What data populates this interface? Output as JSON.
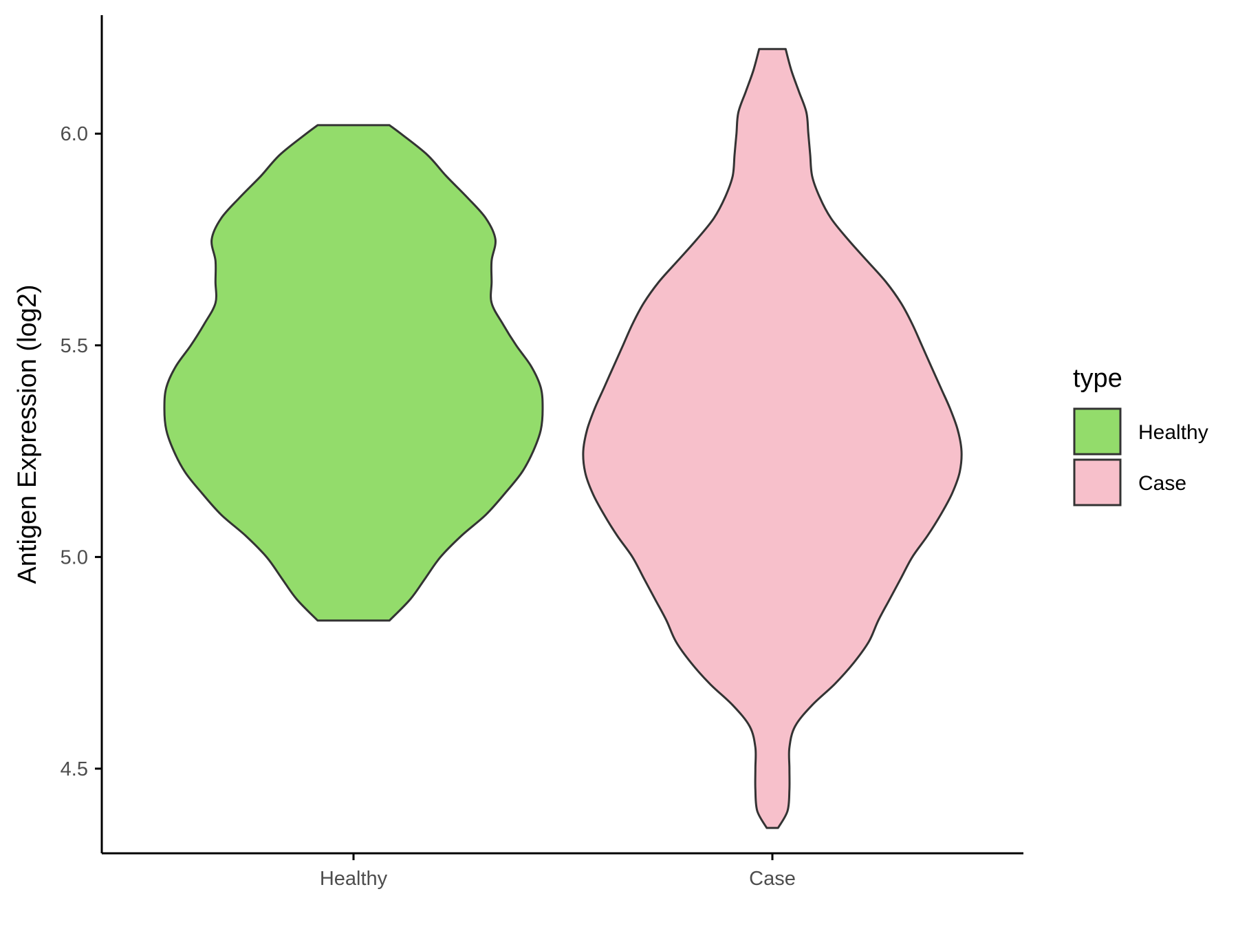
{
  "chart_data": {
    "type": "violin",
    "ylabel": "Antigen Expression (log2)",
    "xlabel": "",
    "ylim": [
      4.3,
      6.28
    ],
    "yticks": [
      4.5,
      5.0,
      5.5,
      6.0
    ],
    "ytick_labels": [
      "4.5",
      "5.0",
      "5.5",
      "6.0"
    ],
    "categories": [
      "Healthy",
      "Case"
    ],
    "legend": {
      "title": "type",
      "position": "right",
      "entries": [
        "Healthy",
        "Case"
      ]
    },
    "series": [
      {
        "name": "Healthy",
        "color": "#93dc6b",
        "min": 4.85,
        "max": 6.02,
        "density_profile": [
          [
            4.85,
            0.19
          ],
          [
            4.9,
            0.3
          ],
          [
            4.95,
            0.38
          ],
          [
            5.0,
            0.46
          ],
          [
            5.05,
            0.57
          ],
          [
            5.1,
            0.7
          ],
          [
            5.15,
            0.8
          ],
          [
            5.2,
            0.89
          ],
          [
            5.25,
            0.95
          ],
          [
            5.3,
            0.99
          ],
          [
            5.35,
            1.0
          ],
          [
            5.4,
            0.99
          ],
          [
            5.45,
            0.94
          ],
          [
            5.5,
            0.86
          ],
          [
            5.55,
            0.79
          ],
          [
            5.6,
            0.73
          ],
          [
            5.65,
            0.73
          ],
          [
            5.7,
            0.73
          ],
          [
            5.75,
            0.75
          ],
          [
            5.8,
            0.7
          ],
          [
            5.85,
            0.6
          ],
          [
            5.9,
            0.49
          ],
          [
            5.95,
            0.39
          ],
          [
            6.0,
            0.25
          ],
          [
            6.02,
            0.19
          ]
        ]
      },
      {
        "name": "Case",
        "color": "#f7c0cb",
        "min": 4.36,
        "max": 6.2,
        "density_profile": [
          [
            4.36,
            0.03
          ],
          [
            4.4,
            0.08
          ],
          [
            4.45,
            0.09
          ],
          [
            4.5,
            0.09
          ],
          [
            4.55,
            0.09
          ],
          [
            4.6,
            0.12
          ],
          [
            4.65,
            0.21
          ],
          [
            4.7,
            0.33
          ],
          [
            4.75,
            0.43
          ],
          [
            4.8,
            0.51
          ],
          [
            4.85,
            0.56
          ],
          [
            4.9,
            0.62
          ],
          [
            4.95,
            0.68
          ],
          [
            5.0,
            0.74
          ],
          [
            5.05,
            0.82
          ],
          [
            5.1,
            0.89
          ],
          [
            5.15,
            0.95
          ],
          [
            5.2,
            0.99
          ],
          [
            5.25,
            1.0
          ],
          [
            5.3,
            0.98
          ],
          [
            5.35,
            0.94
          ],
          [
            5.4,
            0.89
          ],
          [
            5.45,
            0.84
          ],
          [
            5.5,
            0.79
          ],
          [
            5.55,
            0.74
          ],
          [
            5.6,
            0.68
          ],
          [
            5.65,
            0.6
          ],
          [
            5.7,
            0.5
          ],
          [
            5.75,
            0.4
          ],
          [
            5.8,
            0.31
          ],
          [
            5.85,
            0.25
          ],
          [
            5.9,
            0.21
          ],
          [
            5.95,
            0.2
          ],
          [
            6.0,
            0.19
          ],
          [
            6.05,
            0.18
          ],
          [
            6.1,
            0.14
          ],
          [
            6.15,
            0.1
          ],
          [
            6.2,
            0.07
          ]
        ]
      }
    ]
  }
}
